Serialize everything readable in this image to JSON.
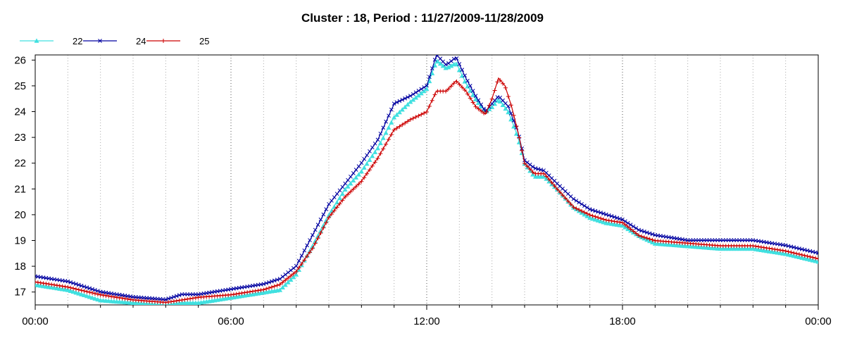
{
  "chart_data": {
    "type": "line",
    "title": "Cluster : 18, Period : 11/27/2009-11/28/2009",
    "xlabel": "",
    "ylabel": "",
    "xlim": [
      0,
      24
    ],
    "ylim": [
      16.5,
      26.2
    ],
    "x_ticks": [
      {
        "value": 0,
        "label": "00:00"
      },
      {
        "value": 6,
        "label": "06:00"
      },
      {
        "value": 12,
        "label": "12:00"
      },
      {
        "value": 18,
        "label": "18:00"
      },
      {
        "value": 24,
        "label": "00:00"
      }
    ],
    "y_ticks": [
      17,
      18,
      19,
      20,
      21,
      22,
      23,
      24,
      25,
      26
    ],
    "grid": "dotted vertical",
    "legend_position": "top-left",
    "series": [
      {
        "name": "22",
        "color": "#40E0E0",
        "marker": "triangle",
        "points": [
          [
            0,
            17.3
          ],
          [
            1,
            17.1
          ],
          [
            2,
            16.7
          ],
          [
            3,
            16.6
          ],
          [
            4,
            16.5
          ],
          [
            4.5,
            16.6
          ],
          [
            5,
            16.6
          ],
          [
            6,
            16.8
          ],
          [
            7,
            17.0
          ],
          [
            7.5,
            17.1
          ],
          [
            8,
            17.7
          ],
          [
            8.5,
            18.8
          ],
          [
            9,
            20.0
          ],
          [
            9.5,
            21.0
          ],
          [
            10,
            21.7
          ],
          [
            10.5,
            22.6
          ],
          [
            11,
            23.8
          ],
          [
            11.5,
            24.4
          ],
          [
            12,
            24.9
          ],
          [
            12.3,
            26.0
          ],
          [
            12.6,
            25.7
          ],
          [
            12.9,
            25.9
          ],
          [
            13.2,
            25.1
          ],
          [
            13.5,
            24.5
          ],
          [
            13.8,
            24.0
          ],
          [
            14.0,
            24.2
          ],
          [
            14.2,
            24.5
          ],
          [
            14.5,
            24.0
          ],
          [
            14.8,
            23.0
          ],
          [
            15,
            22.0
          ],
          [
            15.3,
            21.5
          ],
          [
            15.6,
            21.5
          ],
          [
            16,
            21.0
          ],
          [
            16.5,
            20.3
          ],
          [
            17,
            19.9
          ],
          [
            17.5,
            19.7
          ],
          [
            18,
            19.6
          ],
          [
            18.5,
            19.2
          ],
          [
            19,
            18.9
          ],
          [
            20,
            18.8
          ],
          [
            21,
            18.7
          ],
          [
            22,
            18.7
          ],
          [
            23,
            18.5
          ],
          [
            24,
            18.2
          ]
        ]
      },
      {
        "name": "24",
        "color": "#0000A0",
        "marker": "x",
        "points": [
          [
            0,
            17.6
          ],
          [
            1,
            17.4
          ],
          [
            2,
            17.0
          ],
          [
            3,
            16.8
          ],
          [
            4,
            16.7
          ],
          [
            4.5,
            16.9
          ],
          [
            5,
            16.9
          ],
          [
            6,
            17.1
          ],
          [
            7,
            17.3
          ],
          [
            7.5,
            17.5
          ],
          [
            8,
            18.0
          ],
          [
            8.5,
            19.2
          ],
          [
            9,
            20.4
          ],
          [
            9.5,
            21.2
          ],
          [
            10,
            22.0
          ],
          [
            10.5,
            22.9
          ],
          [
            11,
            24.3
          ],
          [
            11.5,
            24.6
          ],
          [
            12,
            25.0
          ],
          [
            12.3,
            26.2
          ],
          [
            12.6,
            25.8
          ],
          [
            12.9,
            26.1
          ],
          [
            13.2,
            25.3
          ],
          [
            13.5,
            24.6
          ],
          [
            13.8,
            24.0
          ],
          [
            14.0,
            24.3
          ],
          [
            14.2,
            24.6
          ],
          [
            14.5,
            24.2
          ],
          [
            14.8,
            23.2
          ],
          [
            15,
            22.1
          ],
          [
            15.3,
            21.8
          ],
          [
            15.6,
            21.7
          ],
          [
            16,
            21.2
          ],
          [
            16.5,
            20.6
          ],
          [
            17,
            20.2
          ],
          [
            17.5,
            20.0
          ],
          [
            18,
            19.8
          ],
          [
            18.5,
            19.4
          ],
          [
            19,
            19.2
          ],
          [
            20,
            19.0
          ],
          [
            21,
            19.0
          ],
          [
            22,
            19.0
          ],
          [
            23,
            18.8
          ],
          [
            24,
            18.5
          ]
        ]
      },
      {
        "name": "25",
        "color": "#CC0000",
        "marker": "plus",
        "points": [
          [
            0,
            17.4
          ],
          [
            1,
            17.2
          ],
          [
            2,
            16.9
          ],
          [
            3,
            16.7
          ],
          [
            4,
            16.6
          ],
          [
            4.5,
            16.7
          ],
          [
            5,
            16.8
          ],
          [
            6,
            16.9
          ],
          [
            7,
            17.1
          ],
          [
            7.5,
            17.3
          ],
          [
            8,
            17.8
          ],
          [
            8.5,
            18.7
          ],
          [
            9,
            19.9
          ],
          [
            9.5,
            20.7
          ],
          [
            10,
            21.3
          ],
          [
            10.5,
            22.2
          ],
          [
            11,
            23.3
          ],
          [
            11.5,
            23.7
          ],
          [
            12,
            24.0
          ],
          [
            12.3,
            24.8
          ],
          [
            12.6,
            24.8
          ],
          [
            12.9,
            25.2
          ],
          [
            13.2,
            24.8
          ],
          [
            13.5,
            24.2
          ],
          [
            13.8,
            23.9
          ],
          [
            14.0,
            24.5
          ],
          [
            14.2,
            25.3
          ],
          [
            14.4,
            25.0
          ],
          [
            14.6,
            24.2
          ],
          [
            14.8,
            23.2
          ],
          [
            15,
            22.0
          ],
          [
            15.3,
            21.6
          ],
          [
            15.6,
            21.6
          ],
          [
            16,
            21.0
          ],
          [
            16.5,
            20.3
          ],
          [
            17,
            20.0
          ],
          [
            17.5,
            19.8
          ],
          [
            18,
            19.7
          ],
          [
            18.5,
            19.2
          ],
          [
            19,
            19.0
          ],
          [
            20,
            18.9
          ],
          [
            21,
            18.8
          ],
          [
            22,
            18.8
          ],
          [
            23,
            18.6
          ],
          [
            24,
            18.3
          ]
        ]
      }
    ]
  }
}
